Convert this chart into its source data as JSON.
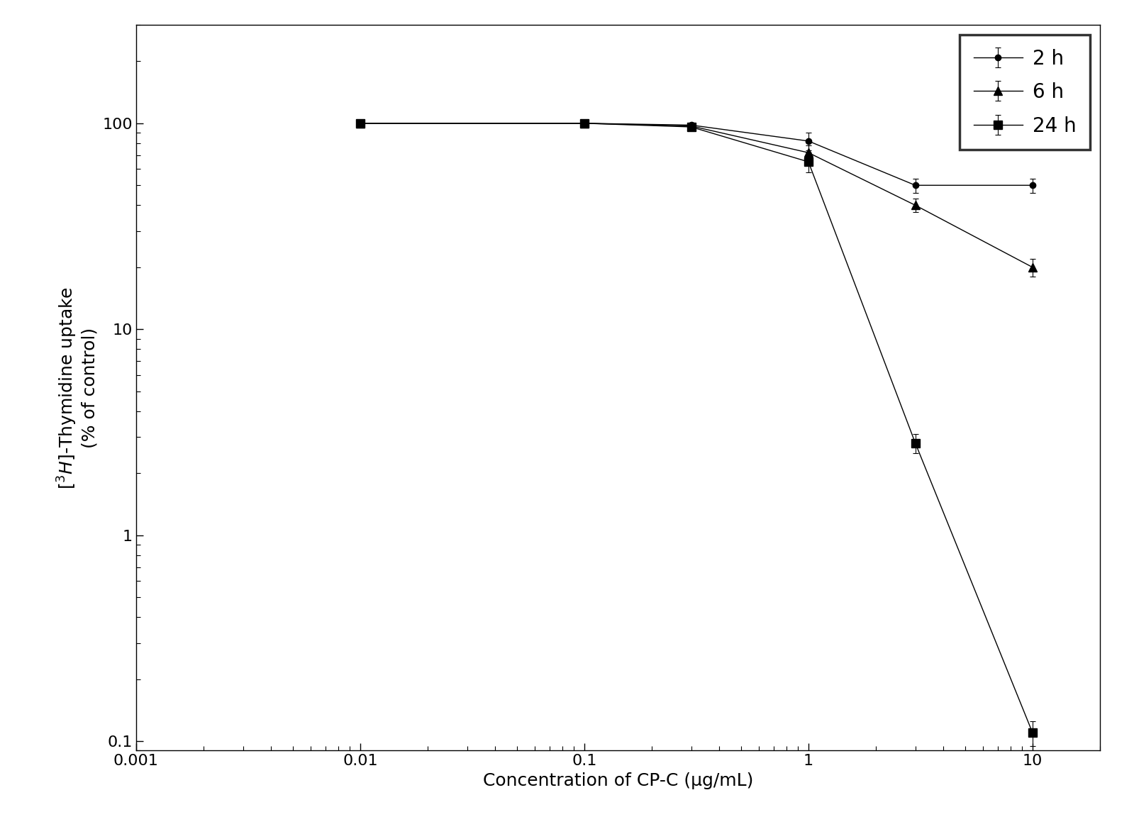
{
  "title": "",
  "xlabel": "Concentration of CP-C (μg/mL)",
  "xlim": [
    0.001,
    20
  ],
  "ylim": [
    0.09,
    300
  ],
  "series": {
    "2h": {
      "x": [
        0.01,
        0.1,
        0.3,
        1.0,
        3.0,
        10.0
      ],
      "y": [
        100,
        100,
        98,
        82,
        50,
        50
      ],
      "yerr": [
        3,
        2,
        3,
        8,
        4,
        4
      ],
      "marker": "o",
      "label": "2 h"
    },
    "6h": {
      "x": [
        0.01,
        0.1,
        0.3,
        1.0,
        3.0,
        10.0
      ],
      "y": [
        100,
        100,
        97,
        72,
        40,
        20
      ],
      "yerr": [
        3,
        2,
        3,
        6,
        3,
        2
      ],
      "marker": "^",
      "label": "6 h"
    },
    "24h": {
      "x": [
        0.01,
        0.1,
        0.3,
        1.0,
        3.0,
        10.0
      ],
      "y": [
        100,
        100,
        96,
        65,
        2.8,
        0.11
      ],
      "yerr": [
        3,
        2,
        4,
        7,
        0.3,
        0.015
      ],
      "marker": "s",
      "label": "24 h"
    }
  },
  "background_color": "#ffffff",
  "marker_sizes": {
    "2h": 6,
    "6h": 9,
    "24h": 8
  },
  "linewidth": 1.0,
  "capsize": 3,
  "fontsize": 18,
  "tick_fontsize": 16,
  "legend_fontsize": 20
}
